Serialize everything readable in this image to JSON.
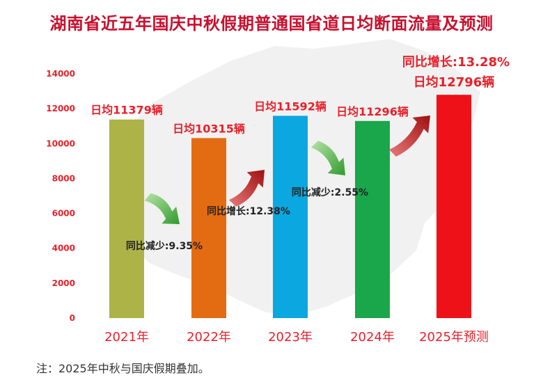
{
  "title": "湖南省近五年国庆中秋假期普通国省道日均断面流量及预测",
  "note": "注：2025年中秋与国庆假期叠加。",
  "colors": {
    "title": "#c8102e",
    "axis_text": "#e8202a",
    "label_text": "#e8202a",
    "change_text": "#222222",
    "arrow_up": "#b01818",
    "arrow_down": "#3aa635",
    "map_bg": "#f1f1f1"
  },
  "chart_data": {
    "type": "bar",
    "categories": [
      "2021年",
      "2022年",
      "2023年",
      "2024年",
      "2025年预测"
    ],
    "values": [
      11379,
      10315,
      11592,
      11296,
      12796
    ],
    "bar_colors": [
      "#adb346",
      "#e36c12",
      "#0aa7e0",
      "#1aa64a",
      "#ee1118"
    ],
    "value_labels": [
      "日均11379辆",
      "日均10315辆",
      "日均11592辆",
      "日均11296辆",
      "日均12796辆"
    ],
    "ylim": [
      0,
      14000
    ],
    "yticks": [
      0,
      2000,
      4000,
      6000,
      8000,
      10000,
      12000,
      14000
    ],
    "grid": false,
    "annotations": [
      {
        "text": "同比减少:9.35%",
        "direction": "down",
        "from": 0,
        "to": 1
      },
      {
        "text": "同比增长:12.38%",
        "direction": "up",
        "from": 1,
        "to": 2
      },
      {
        "text": "同比减少:2.55%",
        "direction": "down",
        "from": 2,
        "to": 3
      },
      {
        "text": "同比增长:13.28%",
        "direction": "up",
        "from": 3,
        "to": 4
      }
    ]
  }
}
